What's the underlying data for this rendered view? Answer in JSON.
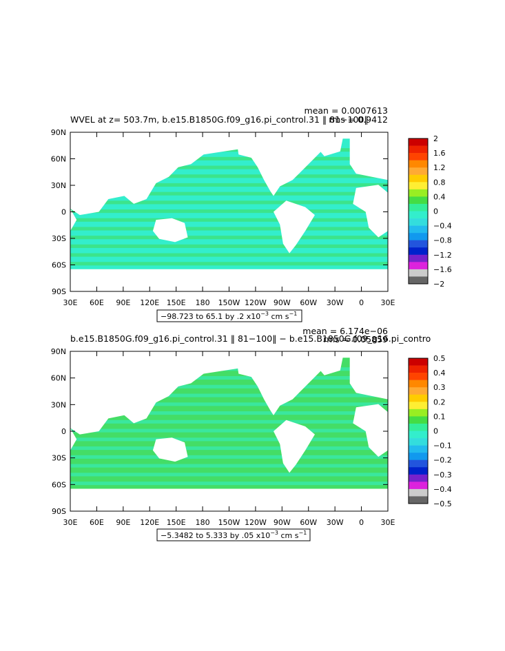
{
  "panels": [
    {
      "title": "WVEL at z= 503.7m, b.e15.B1850G.f09_g16.pi_control.31 ‖ 81−100‖",
      "mean": "mean = 0.0007613",
      "rms": "rms = 0.9412",
      "range_text": "−98.723 to 65.1 by .2 x10",
      "range_exp": "−3",
      "range_unit": " cm s",
      "range_unit_exp": "−1",
      "lat_labels": [
        "90N",
        "60N",
        "30N",
        "0",
        "30S",
        "60S",
        "90S"
      ],
      "lon_labels": [
        "30E",
        "60E",
        "90E",
        "120E",
        "150E",
        "180",
        "150W",
        "120W",
        "90W",
        "60W",
        "30W",
        "0",
        "30E"
      ],
      "colorbar_labels": [
        "2",
        "1.6",
        "1.2",
        "0.8",
        "0.4",
        "0",
        "−0.4",
        "−0.8",
        "−1.2",
        "−1.6",
        "−2"
      ],
      "map_color": "#33eecc",
      "map_color_secondary": "#44dd55"
    },
    {
      "title": "b.e15.B1850G.f09_g16.pi_control.31 ‖ 81−100‖ − b.e15.B1850G.f09_g16.pi_contro",
      "mean": "mean = 6.174e−06",
      "rms": "rms = 0.05859",
      "range_text": "−5.3482 to 5.333 by .05 x10",
      "range_exp": "−3",
      "range_unit": " cm s",
      "range_unit_exp": "−1",
      "lat_labels": [
        "90N",
        "60N",
        "30N",
        "0",
        "30S",
        "60S",
        "90S"
      ],
      "lon_labels": [
        "30E",
        "60E",
        "90E",
        "120E",
        "150E",
        "180",
        "150W",
        "120W",
        "90W",
        "60W",
        "30W",
        "0",
        "30E"
      ],
      "colorbar_labels": [
        "0.5",
        "0.4",
        "0.3",
        "0.2",
        "0.1",
        "0",
        "−0.1",
        "−0.2",
        "−0.3",
        "−0.4",
        "−0.5"
      ],
      "map_color": "#44dd66",
      "map_color_secondary": "#33eecc"
    }
  ],
  "colorbar_colors": [
    "#cc0000",
    "#ee2200",
    "#ff4400",
    "#ff8800",
    "#ffaa33",
    "#ffcc00",
    "#ffee33",
    "#99ee22",
    "#44dd44",
    "#33ee99",
    "#33eecc",
    "#33dddd",
    "#22bbee",
    "#1199ee",
    "#2255dd",
    "#0022cc",
    "#7722cc",
    "#dd22dd",
    "#cccccc",
    "#666666"
  ]
}
